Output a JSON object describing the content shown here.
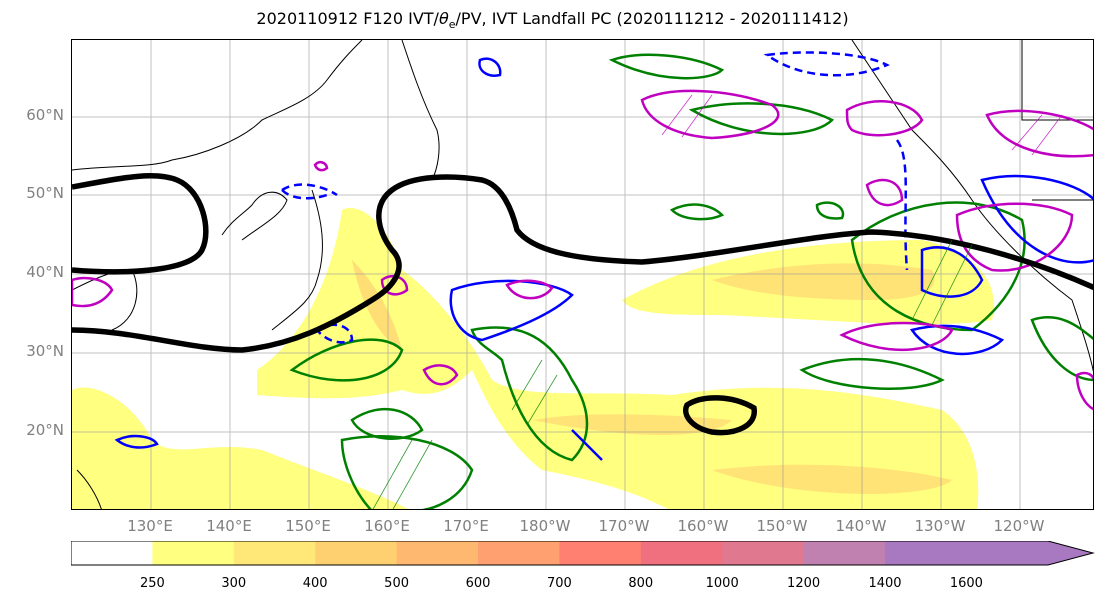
{
  "title": {
    "prefix": "2020110912 F120 IVT/",
    "theta_symbol": "θ",
    "theta_sub": "e",
    "suffix": "/PV, IVT Landfall PC (2020111212 - 2020111412)"
  },
  "map": {
    "lat_labels": [
      "60°N",
      "50°N",
      "40°N",
      "30°N",
      "20°N"
    ],
    "lon_labels": [
      "130°E",
      "140°E",
      "150°E",
      "160°E",
      "170°E",
      "180°W",
      "170°W",
      "160°W",
      "150°W",
      "140°W",
      "130°W",
      "120°W"
    ],
    "grid": "on",
    "colors": {
      "pv_contour": "#000000",
      "pos_contour": "#008000",
      "neg_contour": "#0000ff",
      "magenta_contour": "#c000c0"
    }
  },
  "colorbar": {
    "ticks": [
      "250",
      "300",
      "400",
      "500",
      "600",
      "700",
      "800",
      "1000",
      "1200",
      "1400",
      "1600"
    ],
    "colors": [
      "#ffffff",
      "#ffff80",
      "#ffe878",
      "#ffd070",
      "#ffb870",
      "#ffa070",
      "#ff8070",
      "#f07080",
      "#e07890",
      "#c080b0",
      "#a878c0"
    ],
    "extend": "max"
  }
}
